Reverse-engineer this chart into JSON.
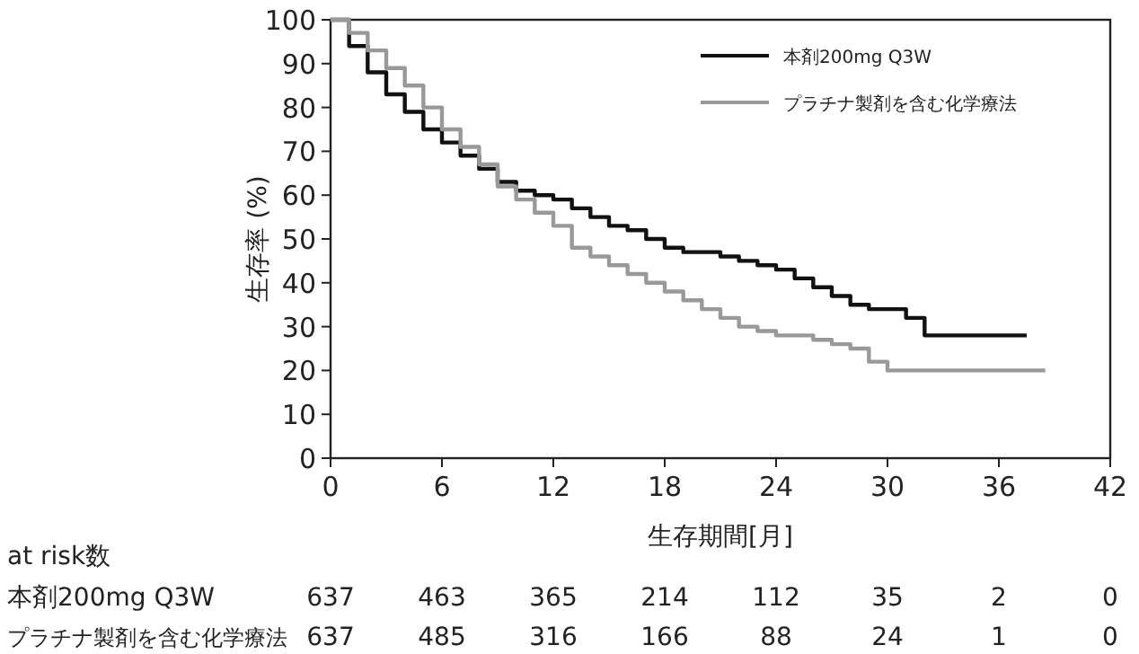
{
  "chart_data": {
    "type": "step",
    "xlabel": "生存期間[月]",
    "ylabel": "生存率 (%)",
    "xlim": [
      0,
      42
    ],
    "xticks": [
      0,
      6,
      12,
      18,
      24,
      30,
      36,
      42
    ],
    "ylim": [
      0,
      100
    ],
    "yticks": [
      0,
      10,
      20,
      30,
      40,
      50,
      60,
      70,
      80,
      90,
      100
    ],
    "grid": false,
    "legend": "top right",
    "series": [
      {
        "name": "本剤200mg Q3W",
        "color": "#111111",
        "x": [
          0,
          1,
          2,
          3,
          4,
          5,
          6,
          7,
          8,
          9,
          10,
          11,
          12,
          13,
          14,
          15,
          16,
          17,
          18,
          19,
          20,
          21,
          22,
          23,
          24,
          25,
          26,
          27,
          28,
          29,
          30,
          31,
          32,
          33,
          35,
          37.5
        ],
        "values": [
          100,
          94,
          88,
          83,
          79,
          75,
          72,
          69,
          66,
          63,
          61,
          60,
          59,
          57,
          55,
          53,
          52,
          50,
          48,
          47,
          47,
          46,
          45,
          44,
          43,
          41,
          39,
          37,
          35,
          34,
          34,
          32,
          28,
          28,
          28,
          28
        ]
      },
      {
        "name": "プラチナ製剤を含む化学療法",
        "color": "#999999",
        "x": [
          0,
          1,
          2,
          3,
          4,
          5,
          6,
          7,
          8,
          9,
          10,
          11,
          12,
          13,
          14,
          15,
          16,
          17,
          18,
          19,
          20,
          21,
          22,
          23,
          24,
          25,
          26,
          27,
          28,
          29,
          30,
          31,
          34,
          38.5
        ],
        "values": [
          100,
          97,
          93,
          89,
          85,
          80,
          75,
          71,
          67,
          62,
          59,
          56,
          53,
          48,
          46,
          44,
          42,
          40,
          38,
          36,
          34,
          32,
          30,
          29,
          28,
          28,
          27,
          26,
          25,
          22,
          20,
          20,
          20,
          20
        ]
      }
    ],
    "annotations": [
      "at risk数",
      "本剤200mg Q3W",
      "637",
      "463",
      "365",
      "214",
      "112",
      "35",
      "2",
      "0",
      "プラチナ製剤を含む化学療法",
      "637",
      "485",
      "316",
      "166",
      "88",
      "24",
      "1",
      "0"
    ]
  }
}
